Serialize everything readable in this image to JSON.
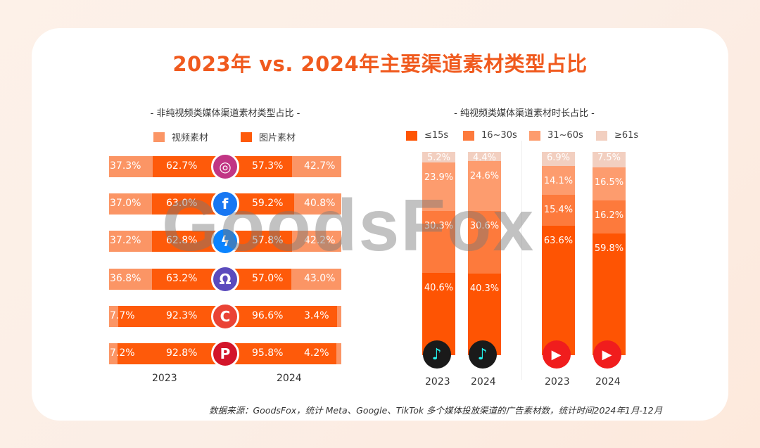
{
  "title": "2023年 vs. 2024年主要渠道素材类型占比",
  "watermark": "GoodsFox",
  "footnote": "数据来源：GoodsFox，统计 Meta、Google、TikTok 多个媒体投放渠道的广告素材数，统计时间2024年1月-12月",
  "chart_data": [
    {
      "type": "bar",
      "orientation": "horizontal-diverging",
      "title": "- 非纯视频类媒体渠道素材类型占比 -",
      "legend": [
        {
          "name": "视频素材",
          "color": "#fb9565"
        },
        {
          "name": "图片素材",
          "color": "#fe5a0a"
        }
      ],
      "categories": [
        "instagram",
        "facebook",
        "messenger",
        "audience-network",
        "google",
        "pinterest"
      ],
      "years": [
        "2023",
        "2024"
      ],
      "series": [
        {
          "name": "视频素材",
          "2023": [
            37.3,
            37.0,
            37.2,
            36.8,
            7.7,
            7.2
          ],
          "2024": [
            42.7,
            40.8,
            42.2,
            43.0,
            3.4,
            4.2
          ]
        },
        {
          "name": "图片素材",
          "2023": [
            62.7,
            63.0,
            62.8,
            63.2,
            92.3,
            92.8
          ],
          "2024": [
            57.3,
            59.2,
            57.8,
            57.0,
            96.6,
            95.8
          ]
        }
      ],
      "labels": {
        "2023_video": [
          "37.3%",
          "37.0%",
          "37.2%",
          "36.8%",
          "7.7%",
          "7.2%"
        ],
        "2023_image": [
          "62.7%",
          "63.0%",
          "62.8%",
          "63.2%",
          "92.3%",
          "92.8%"
        ],
        "2024_image": [
          "57.3%",
          "59.2%",
          "57.8%",
          "57.0%",
          "96.6%",
          "95.8%"
        ],
        "2024_video": [
          "42.7%",
          "40.8%",
          "42.2%",
          "43.0%",
          "3.4%",
          "4.2%"
        ]
      },
      "icon_colors": [
        "#c13584",
        "#1877f2",
        "#0a84ff",
        "#5b4bbd",
        "#ea4335",
        "#d3152a"
      ]
    },
    {
      "type": "bar",
      "orientation": "vertical-stacked-100",
      "title": "- 纯视频类媒体渠道素材时长占比 -",
      "legend": [
        {
          "name": "≤15s",
          "color": "#fe5403"
        },
        {
          "name": "16~30s",
          "color": "#fd7a3c"
        },
        {
          "name": "31~60s",
          "color": "#fd9c6e"
        },
        {
          "name": "≥61s",
          "color": "#f2cfc0"
        }
      ],
      "bars": [
        {
          "channel": "tiktok",
          "year": "2023",
          "values": [
            40.6,
            30.3,
            23.9,
            5.2
          ],
          "labels": [
            "40.6%",
            "30.3%",
            "23.9%",
            "5.2%"
          ]
        },
        {
          "channel": "tiktok",
          "year": "2024",
          "values": [
            40.3,
            30.6,
            24.6,
            4.4
          ],
          "labels": [
            "40.3%",
            "30.6%",
            "24.6%",
            "4.4%"
          ]
        },
        {
          "channel": "youtube",
          "year": "2023",
          "values": [
            63.6,
            15.4,
            14.1,
            6.9
          ],
          "labels": [
            "63.6%",
            "15.4%",
            "14.1%",
            "6.9%"
          ]
        },
        {
          "channel": "youtube",
          "year": "2024",
          "values": [
            59.8,
            16.2,
            16.5,
            7.5
          ],
          "labels": [
            "59.8%",
            "16.2%",
            "16.5%",
            "7.5%"
          ]
        }
      ]
    }
  ]
}
